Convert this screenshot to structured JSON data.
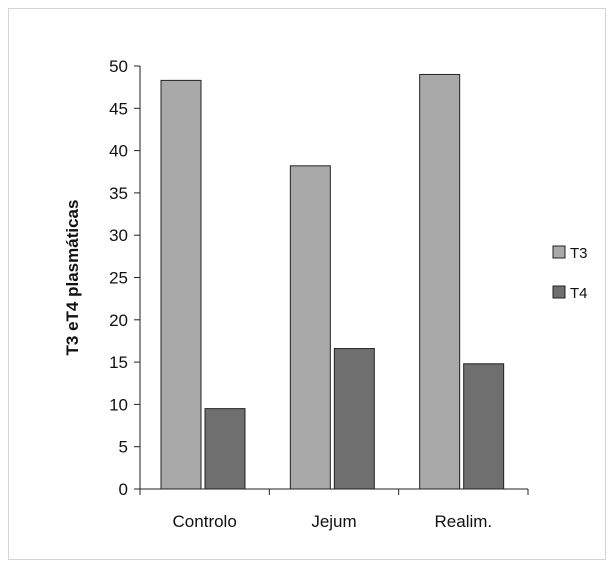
{
  "chart_data": {
    "type": "bar",
    "title": "",
    "xlabel": "",
    "ylabel": "T3 eT4 plasmáticas",
    "ylim": [
      0,
      50
    ],
    "yticks": [
      0,
      5,
      10,
      15,
      20,
      25,
      30,
      35,
      40,
      45,
      50
    ],
    "categories": [
      "Controlo",
      "Jejum",
      "Realim."
    ],
    "series": [
      {
        "name": "T3",
        "values": [
          48.3,
          38.2,
          49.0
        ],
        "color": "#a9a9a9"
      },
      {
        "name": "T4",
        "values": [
          9.5,
          16.6,
          14.8
        ],
        "color": "#6f6f6f"
      }
    ],
    "grid": false,
    "legend_position": "right"
  }
}
